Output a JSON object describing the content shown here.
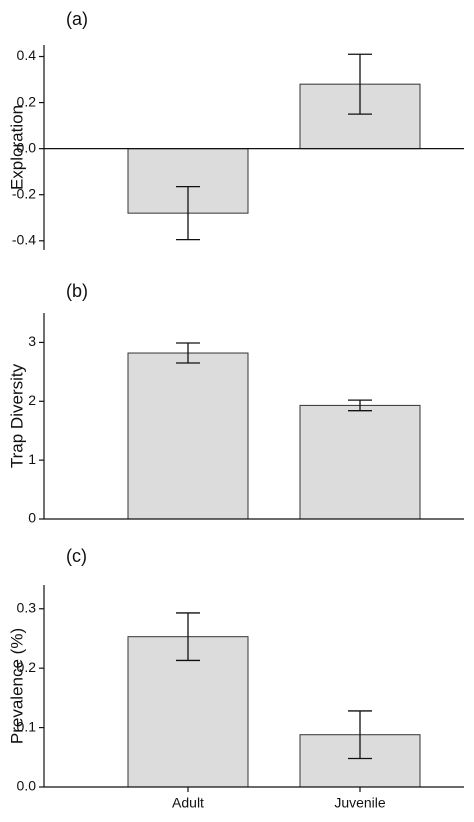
{
  "chart_data": [
    {
      "type": "bar",
      "label": "(a)",
      "ylabel": "Exploration",
      "values": [
        -0.28,
        0.28
      ],
      "errors": [
        0.115,
        0.13
      ],
      "color": "#dcdcdc",
      "ylim": [
        -0.44,
        0.45
      ],
      "yticks": [
        -0.4,
        -0.2,
        {
          "value": 0,
          "label": "0.0"
        },
        0.2,
        0.4
      ]
    },
    {
      "type": "bar",
      "label": "(b)",
      "ylabel": "Trap Diversity",
      "values": [
        2.82,
        1.93
      ],
      "errors": [
        0.17,
        0.09
      ],
      "color": "#dcdcdc",
      "ylim": [
        0,
        3.5
      ],
      "yticks": [
        0,
        1,
        2,
        3
      ]
    },
    {
      "type": "bar",
      "label": "(c)",
      "ylabel": "Prevalence (%)",
      "categories": [
        "Adult",
        "Juvenile"
      ],
      "values": [
        0.253,
        0.088
      ],
      "errors": [
        0.04,
        0.04
      ],
      "color": "#dcdcdc",
      "ylim": [
        0,
        0.34
      ],
      "yticks": [
        {
          "value": 0,
          "label": "0.0"
        },
        0.1,
        0.2,
        0.3
      ]
    }
  ]
}
